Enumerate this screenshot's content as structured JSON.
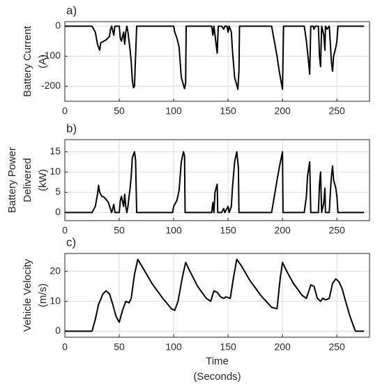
{
  "chart_data": [
    {
      "type": "line",
      "panel_label": "a)",
      "ylabel": [
        "Battery Current",
        "(A)"
      ],
      "color": "#000000",
      "grid": true,
      "xlim": [
        0,
        280
      ],
      "xticks": [
        0,
        50,
        100,
        150,
        200,
        250
      ],
      "ylim": [
        -250,
        15
      ],
      "yticks": [
        -200,
        -100,
        0
      ],
      "x": [
        0,
        25,
        28,
        30,
        32,
        33,
        36,
        38,
        41,
        42,
        43,
        45,
        46,
        50,
        51,
        52,
        54,
        55,
        56,
        57,
        58,
        59,
        60,
        61,
        62,
        63,
        64,
        65,
        66,
        100,
        101,
        103,
        105,
        106,
        107,
        110,
        111,
        111.5,
        135,
        136,
        137,
        139,
        140,
        141,
        144,
        146,
        147,
        149,
        150,
        151,
        153,
        154,
        156,
        159,
        160,
        160.5,
        190,
        195,
        197,
        200,
        201,
        220,
        222,
        224,
        225,
        226,
        228,
        229,
        230,
        233,
        234,
        235,
        236,
        238,
        239,
        239.5,
        241,
        243,
        244,
        245,
        246,
        247,
        249,
        250,
        251,
        275
      ],
      "values": [
        0,
        0,
        -20,
        -60,
        -80,
        -55,
        -50,
        -45,
        -35,
        -10,
        0,
        -30,
        0,
        0,
        -40,
        -50,
        -20,
        -60,
        -20,
        0,
        -20,
        -50,
        -80,
        -120,
        -180,
        -205,
        -200,
        -100,
        0,
        0,
        -20,
        -40,
        -70,
        -120,
        -170,
        -208,
        -190,
        0,
        0,
        -30,
        0,
        -60,
        -90,
        0,
        0,
        -10,
        0,
        0,
        -20,
        0,
        -20,
        -80,
        -170,
        -210,
        -150,
        0,
        0,
        -100,
        -150,
        -210,
        0,
        0,
        -50,
        -120,
        -160,
        0,
        0,
        -10,
        0,
        0,
        -100,
        -135,
        0,
        -30,
        -80,
        0,
        -10,
        0,
        -60,
        -120,
        -150,
        -100,
        -70,
        -50,
        0,
        0
      ]
    },
    {
      "type": "line",
      "panel_label": "b)",
      "ylabel": [
        "Battery Power",
        "Delivered",
        "(kW)"
      ],
      "color": "#000000",
      "grid": true,
      "xlim": [
        0,
        280
      ],
      "xticks": [
        0,
        50,
        100,
        150,
        200,
        250
      ],
      "ylim": [
        -2,
        18
      ],
      "yticks": [
        0,
        5,
        10,
        15
      ],
      "x": [
        0,
        25,
        28,
        30,
        31,
        32,
        34,
        36,
        38,
        40,
        42,
        43,
        45,
        46,
        50,
        51,
        52,
        54,
        55,
        56,
        57,
        58,
        59,
        60,
        61,
        62,
        64,
        65,
        66,
        99,
        100,
        103,
        105,
        106,
        107,
        109,
        110,
        110.5,
        135,
        136,
        137,
        138,
        140,
        140.5,
        144,
        146,
        147,
        150,
        151,
        153,
        154,
        156,
        158,
        159.5,
        160,
        190,
        195,
        197,
        200,
        200.5,
        220,
        222,
        223,
        225,
        226,
        233,
        234,
        235,
        236,
        238,
        239,
        239.5,
        243,
        244,
        245,
        246,
        247,
        249,
        250,
        251,
        275
      ],
      "values": [
        0,
        0,
        1.5,
        4.5,
        6.7,
        5,
        4,
        3.8,
        3.2,
        2.5,
        0.8,
        0,
        2,
        0,
        0,
        3,
        4,
        1.5,
        4.5,
        1.5,
        0,
        1.5,
        4,
        6,
        9,
        13.5,
        15,
        13,
        0,
        0,
        1.5,
        3,
        5.5,
        9,
        12.5,
        15,
        14,
        0,
        0,
        2.5,
        0,
        5,
        7,
        0,
        0,
        1,
        0,
        1.5,
        0,
        1.5,
        6,
        12.5,
        15,
        11,
        0,
        0,
        8,
        11,
        15,
        0,
        0,
        4,
        9,
        12.5,
        0,
        0,
        7,
        10,
        0,
        2.5,
        6,
        0,
        0,
        5,
        9,
        11.5,
        8,
        6,
        4,
        0,
        0
      ]
    },
    {
      "type": "line",
      "panel_label": "c)",
      "ylabel": [
        "Vehicle Velocity",
        "(m/s)"
      ],
      "xlabel": [
        "Time",
        "(Seconds)"
      ],
      "color": "#000000",
      "grid": true,
      "xlim": [
        0,
        280
      ],
      "xticks": [
        0,
        50,
        100,
        150,
        200,
        250
      ],
      "ylim": [
        -2,
        26
      ],
      "yticks": [
        0,
        10,
        20
      ],
      "x": [
        0,
        25,
        28,
        31,
        35,
        38,
        41,
        44,
        47,
        50,
        53,
        56,
        59,
        61,
        64,
        67,
        72,
        80,
        90,
        98,
        101,
        104,
        108,
        111,
        115,
        122,
        130,
        134,
        137,
        140,
        143,
        146,
        148,
        152,
        155,
        158,
        162,
        170,
        180,
        190,
        195,
        198,
        200,
        204,
        210,
        218,
        222,
        226,
        229,
        232,
        235,
        237,
        240,
        243,
        246,
        249,
        252,
        255,
        258,
        262,
        265,
        267,
        275
      ],
      "values": [
        0,
        0,
        4,
        9,
        12.5,
        13.5,
        12.5,
        9,
        5,
        3,
        7,
        10,
        9.5,
        11,
        19,
        24,
        21,
        16,
        11,
        7.5,
        7,
        10,
        18,
        23,
        20,
        15,
        11,
        10,
        13.5,
        13,
        11.5,
        11,
        11.5,
        11,
        18,
        24,
        22,
        17,
        12,
        8,
        7.5,
        18,
        23,
        20,
        16,
        12,
        11,
        15.5,
        15,
        11,
        10,
        11,
        10.5,
        11,
        16,
        17.5,
        16.5,
        14,
        10,
        5,
        2,
        0,
        0
      ]
    }
  ]
}
